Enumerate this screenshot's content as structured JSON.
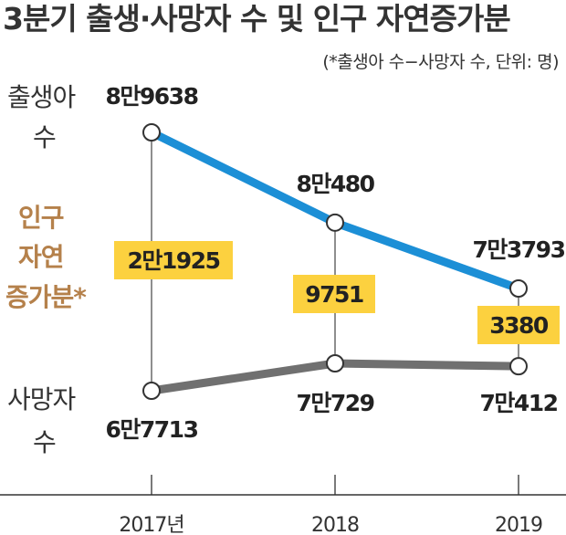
{
  "chart_data": {
    "type": "line",
    "title": "3분기 출생·사망자 수 및 인구 자연증가분",
    "subtitle": "(*출생아 수−사망자 수, 단위: 명)",
    "categories": [
      "2017년",
      "2018",
      "2019"
    ],
    "series": [
      {
        "name": "출생아 수",
        "name_lines": [
          "출생아",
          "수"
        ],
        "values": [
          89638,
          80480,
          73793
        ],
        "value_labels": [
          "8만9638",
          "8만480",
          "7만3793"
        ],
        "color": "#1c8fd6"
      },
      {
        "name": "사망자 수",
        "name_lines": [
          "사망자",
          "수"
        ],
        "values": [
          67713,
          70729,
          70412
        ],
        "value_labels": [
          "6만7713",
          "7만729",
          "7만412"
        ],
        "color": "#707070"
      }
    ],
    "natural_increase": {
      "name": "인구 자연증가분*",
      "name_lines": [
        "인구",
        "자연",
        "증가분*"
      ],
      "values": [
        21925,
        9751,
        3380
      ],
      "value_labels": [
        "2만1925",
        "9751",
        "3380"
      ],
      "box_color": "#fcd13f",
      "label_color": "#b5814b"
    },
    "grid": false
  }
}
